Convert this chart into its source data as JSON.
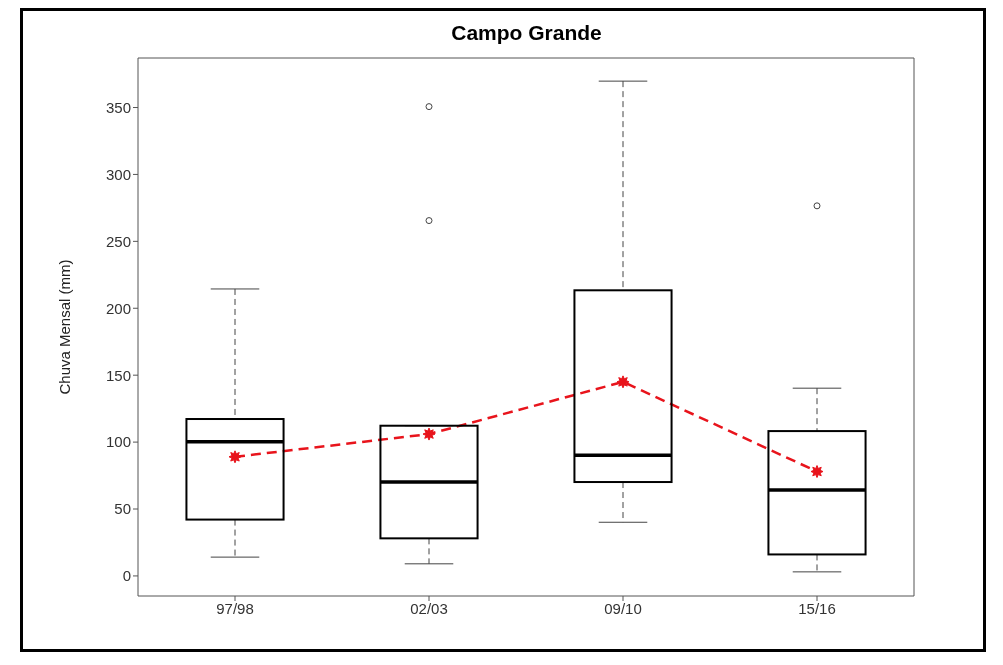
{
  "chart_data": {
    "type": "box",
    "title": "Campo Grande",
    "ylabel": "Chuva Mensal (mm)",
    "categories": [
      "97/98",
      "02/03",
      "09/10",
      "15/16"
    ],
    "boxes": [
      {
        "low": 14,
        "q1": 42,
        "median": 100,
        "q3": 117,
        "high": 214
      },
      {
        "low": 9,
        "q1": 28,
        "median": 70,
        "q3": 112,
        "high": 112,
        "outliers": [
          265,
          350
        ]
      },
      {
        "low": 40,
        "q1": 70,
        "median": 90,
        "q3": 213,
        "high": 369
      },
      {
        "low": 3,
        "q1": 16,
        "median": 64,
        "q3": 108,
        "high": 140,
        "outliers": [
          276
        ]
      }
    ],
    "series": [
      {
        "type": "line",
        "color": "#e8141c",
        "values": [
          89,
          106,
          145,
          78
        ]
      }
    ],
    "marker": "star",
    "line_style": "dashed",
    "ylim": [
      -15,
      387
    ],
    "yticks": [
      0,
      50,
      100,
      150,
      200,
      250,
      300,
      350
    ],
    "grid": false
  }
}
